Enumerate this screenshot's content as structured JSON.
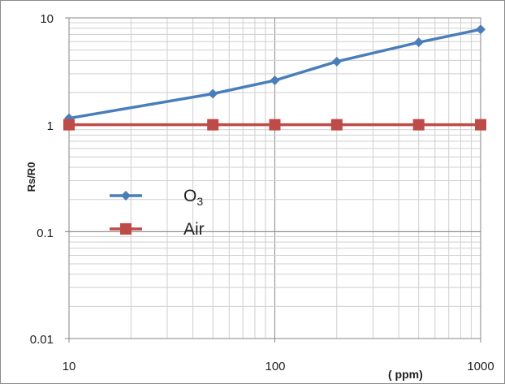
{
  "chart_data": {
    "type": "line",
    "xscale": "log",
    "yscale": "log",
    "xlim": [
      10,
      1000
    ],
    "ylim": [
      0.01,
      10
    ],
    "xticks": [
      "10",
      "100",
      "1000"
    ],
    "yticks": [
      "10",
      "1",
      "0.1",
      "0.01"
    ],
    "xlabel": "( ppm)",
    "ylabel": "Rs/R0",
    "grid": true,
    "legend_position": "left-center",
    "series": [
      {
        "name": "O3",
        "color": "#4a7ebb",
        "marker": "diamond",
        "x": [
          10,
          50,
          100,
          200,
          500,
          1000
        ],
        "y": [
          1.15,
          1.95,
          2.6,
          3.9,
          5.9,
          7.8
        ]
      },
      {
        "name": "Air",
        "color": "#be4b48",
        "marker": "square",
        "x": [
          10,
          50,
          100,
          200,
          500,
          1000
        ],
        "y": [
          1,
          1,
          1,
          1,
          1,
          1
        ]
      }
    ]
  }
}
